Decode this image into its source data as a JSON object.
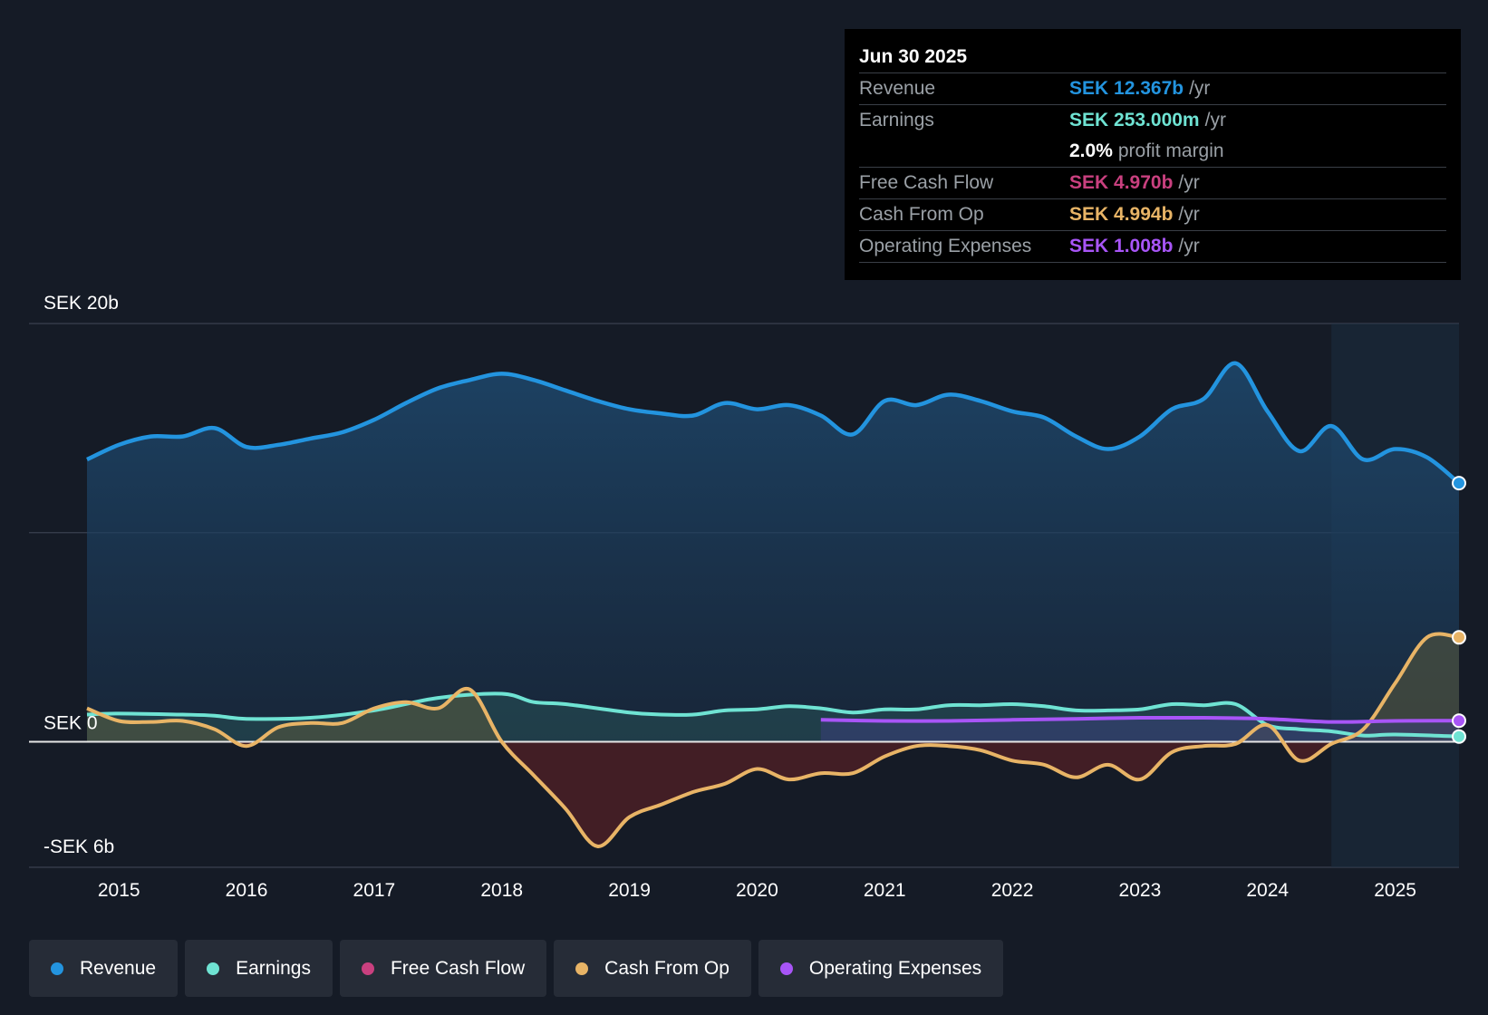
{
  "tooltip": {
    "date": "Jun 30 2025",
    "rows": [
      {
        "label": "Revenue",
        "value": "SEK 12.367b",
        "unit": "/yr",
        "color": "#2394df"
      },
      {
        "label": "Earnings",
        "value": "SEK 253.000m",
        "unit": "/yr",
        "color": "#6fe3d3"
      },
      {
        "label": "",
        "value": "2.0%",
        "unit": "profit margin",
        "color": "#ffffff"
      },
      {
        "label": "Free Cash Flow",
        "value": "SEK 4.970b",
        "unit": "/yr",
        "color": "#c9407f"
      },
      {
        "label": "Cash From Op",
        "value": "SEK 4.994b",
        "unit": "/yr",
        "color": "#e8b466"
      },
      {
        "label": "Operating Expenses",
        "value": "SEK 1.008b",
        "unit": "/yr",
        "color": "#a855f7"
      }
    ]
  },
  "legend": [
    {
      "label": "Revenue",
      "color": "#2394df"
    },
    {
      "label": "Earnings",
      "color": "#6fe3d3"
    },
    {
      "label": "Free Cash Flow",
      "color": "#c9407f"
    },
    {
      "label": "Cash From Op",
      "color": "#e8b466"
    },
    {
      "label": "Operating Expenses",
      "color": "#a855f7"
    }
  ],
  "chart_data": {
    "type": "area",
    "title": "",
    "y_unit": "SEK b",
    "ylim": [
      -6,
      20
    ],
    "y_tick_labels": [
      {
        "value": 20,
        "label": "SEK 20b"
      },
      {
        "value": 0,
        "label": "SEK 0"
      },
      {
        "value": -6,
        "label": "-SEK 6b"
      }
    ],
    "xlim": [
      2014.75,
      2025.5
    ],
    "x_ticks": [
      2015,
      2016,
      2017,
      2018,
      2019,
      2020,
      2021,
      2022,
      2023,
      2024,
      2025
    ],
    "forecast_start": 2024.5,
    "series": [
      {
        "name": "Revenue",
        "color": "#2394df",
        "points": [
          [
            2014.75,
            13.5
          ],
          [
            2015.0,
            14.2
          ],
          [
            2015.25,
            14.6
          ],
          [
            2015.5,
            14.6
          ],
          [
            2015.75,
            15.0
          ],
          [
            2016.0,
            14.1
          ],
          [
            2016.25,
            14.2
          ],
          [
            2016.5,
            14.5
          ],
          [
            2016.75,
            14.8
          ],
          [
            2017.0,
            15.4
          ],
          [
            2017.25,
            16.2
          ],
          [
            2017.5,
            16.9
          ],
          [
            2017.75,
            17.3
          ],
          [
            2018.0,
            17.6
          ],
          [
            2018.25,
            17.3
          ],
          [
            2018.5,
            16.8
          ],
          [
            2018.75,
            16.3
          ],
          [
            2019.0,
            15.9
          ],
          [
            2019.25,
            15.7
          ],
          [
            2019.5,
            15.6
          ],
          [
            2019.75,
            16.2
          ],
          [
            2020.0,
            15.9
          ],
          [
            2020.25,
            16.1
          ],
          [
            2020.5,
            15.6
          ],
          [
            2020.75,
            14.7
          ],
          [
            2021.0,
            16.3
          ],
          [
            2021.25,
            16.1
          ],
          [
            2021.5,
            16.6
          ],
          [
            2021.75,
            16.3
          ],
          [
            2022.0,
            15.8
          ],
          [
            2022.25,
            15.5
          ],
          [
            2022.5,
            14.6
          ],
          [
            2022.75,
            14.0
          ],
          [
            2023.0,
            14.6
          ],
          [
            2023.25,
            15.9
          ],
          [
            2023.5,
            16.4
          ],
          [
            2023.75,
            18.1
          ],
          [
            2024.0,
            15.8
          ],
          [
            2024.25,
            13.9
          ],
          [
            2024.5,
            15.1
          ],
          [
            2024.75,
            13.5
          ],
          [
            2025.0,
            14.0
          ],
          [
            2025.25,
            13.6
          ],
          [
            2025.5,
            12.367
          ]
        ]
      },
      {
        "name": "Earnings",
        "color": "#6fe3d3",
        "points": [
          [
            2014.75,
            1.3
          ],
          [
            2015.0,
            1.35
          ],
          [
            2015.5,
            1.3
          ],
          [
            2015.75,
            1.25
          ],
          [
            2016.0,
            1.1
          ],
          [
            2016.5,
            1.15
          ],
          [
            2017.0,
            1.5
          ],
          [
            2017.5,
            2.1
          ],
          [
            2018.0,
            2.3
          ],
          [
            2018.25,
            1.9
          ],
          [
            2018.5,
            1.8
          ],
          [
            2019.0,
            1.4
          ],
          [
            2019.25,
            1.3
          ],
          [
            2019.5,
            1.3
          ],
          [
            2019.75,
            1.5
          ],
          [
            2020.0,
            1.55
          ],
          [
            2020.25,
            1.7
          ],
          [
            2020.5,
            1.6
          ],
          [
            2020.75,
            1.4
          ],
          [
            2021.0,
            1.55
          ],
          [
            2021.25,
            1.55
          ],
          [
            2021.5,
            1.75
          ],
          [
            2021.75,
            1.75
          ],
          [
            2022.0,
            1.8
          ],
          [
            2022.25,
            1.7
          ],
          [
            2022.5,
            1.5
          ],
          [
            2022.75,
            1.5
          ],
          [
            2023.0,
            1.55
          ],
          [
            2023.25,
            1.8
          ],
          [
            2023.5,
            1.75
          ],
          [
            2023.75,
            1.8
          ],
          [
            2024.0,
            0.8
          ],
          [
            2024.25,
            0.6
          ],
          [
            2024.5,
            0.5
          ],
          [
            2024.75,
            0.3
          ],
          [
            2025.0,
            0.35
          ],
          [
            2025.5,
            0.253
          ]
        ]
      },
      {
        "name": "Free Cash Flow",
        "color": "#c9407f",
        "points": [
          [
            2014.75,
            1.6
          ],
          [
            2015.0,
            1.0
          ],
          [
            2015.25,
            0.95
          ],
          [
            2015.5,
            1.0
          ],
          [
            2015.75,
            0.6
          ],
          [
            2016.0,
            -0.2
          ],
          [
            2016.25,
            0.7
          ],
          [
            2016.5,
            0.9
          ],
          [
            2016.75,
            0.9
          ],
          [
            2017.0,
            1.6
          ],
          [
            2017.25,
            1.9
          ],
          [
            2017.5,
            1.6
          ],
          [
            2017.75,
            2.5
          ],
          [
            2018.0,
            0.0
          ],
          [
            2018.25,
            -1.6
          ],
          [
            2018.5,
            -3.2
          ],
          [
            2018.75,
            -5.0
          ],
          [
            2019.0,
            -3.6
          ],
          [
            2019.25,
            -3.0
          ],
          [
            2019.5,
            -2.4
          ],
          [
            2019.75,
            -2.0
          ],
          [
            2020.0,
            -1.3
          ],
          [
            2020.25,
            -1.8
          ],
          [
            2020.5,
            -1.5
          ],
          [
            2020.75,
            -1.5
          ],
          [
            2021.0,
            -0.7
          ],
          [
            2021.25,
            -0.2
          ],
          [
            2021.5,
            -0.2
          ],
          [
            2021.75,
            -0.4
          ],
          [
            2022.0,
            -0.9
          ],
          [
            2022.25,
            -1.1
          ],
          [
            2022.5,
            -1.7
          ],
          [
            2022.75,
            -1.1
          ],
          [
            2023.0,
            -1.8
          ],
          [
            2023.25,
            -0.5
          ],
          [
            2023.5,
            -0.2
          ],
          [
            2023.75,
            -0.1
          ],
          [
            2024.0,
            0.8
          ],
          [
            2024.25,
            -0.9
          ],
          [
            2024.5,
            -0.1
          ],
          [
            2024.75,
            0.6
          ],
          [
            2025.0,
            2.8
          ],
          [
            2025.25,
            4.9
          ],
          [
            2025.5,
            4.97
          ]
        ]
      },
      {
        "name": "Cash From Op",
        "color": "#e8b466",
        "points": [
          [
            2014.75,
            1.6
          ],
          [
            2015.0,
            1.0
          ],
          [
            2015.25,
            0.95
          ],
          [
            2015.5,
            1.0
          ],
          [
            2015.75,
            0.6
          ],
          [
            2016.0,
            -0.2
          ],
          [
            2016.25,
            0.7
          ],
          [
            2016.5,
            0.9
          ],
          [
            2016.75,
            0.9
          ],
          [
            2017.0,
            1.6
          ],
          [
            2017.25,
            1.9
          ],
          [
            2017.5,
            1.6
          ],
          [
            2017.75,
            2.5
          ],
          [
            2018.0,
            0.0
          ],
          [
            2018.25,
            -1.6
          ],
          [
            2018.5,
            -3.2
          ],
          [
            2018.75,
            -5.0
          ],
          [
            2019.0,
            -3.6
          ],
          [
            2019.25,
            -3.0
          ],
          [
            2019.5,
            -2.4
          ],
          [
            2019.75,
            -2.0
          ],
          [
            2020.0,
            -1.3
          ],
          [
            2020.25,
            -1.8
          ],
          [
            2020.5,
            -1.5
          ],
          [
            2020.75,
            -1.5
          ],
          [
            2021.0,
            -0.7
          ],
          [
            2021.25,
            -0.2
          ],
          [
            2021.5,
            -0.2
          ],
          [
            2021.75,
            -0.4
          ],
          [
            2022.0,
            -0.9
          ],
          [
            2022.25,
            -1.1
          ],
          [
            2022.5,
            -1.7
          ],
          [
            2022.75,
            -1.1
          ],
          [
            2023.0,
            -1.8
          ],
          [
            2023.25,
            -0.5
          ],
          [
            2023.5,
            -0.2
          ],
          [
            2023.75,
            -0.1
          ],
          [
            2024.0,
            0.8
          ],
          [
            2024.25,
            -0.9
          ],
          [
            2024.5,
            -0.1
          ],
          [
            2024.75,
            0.6
          ],
          [
            2025.0,
            2.8
          ],
          [
            2025.25,
            5.0
          ],
          [
            2025.5,
            4.994
          ]
        ]
      },
      {
        "name": "Operating Expenses",
        "color": "#a855f7",
        "points": [
          [
            2020.5,
            1.05
          ],
          [
            2021.0,
            1.0
          ],
          [
            2021.5,
            1.0
          ],
          [
            2022.0,
            1.05
          ],
          [
            2022.5,
            1.1
          ],
          [
            2023.0,
            1.15
          ],
          [
            2023.5,
            1.15
          ],
          [
            2024.0,
            1.1
          ],
          [
            2024.5,
            0.95
          ],
          [
            2025.0,
            1.0
          ],
          [
            2025.5,
            1.008
          ]
        ]
      }
    ]
  }
}
